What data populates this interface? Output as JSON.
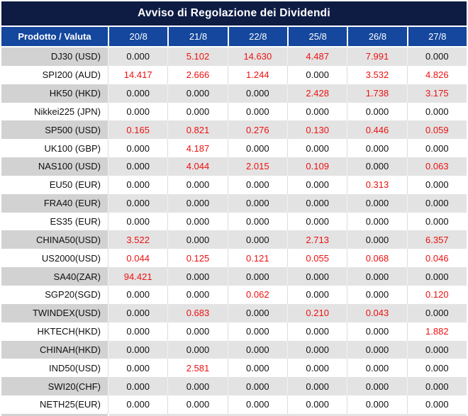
{
  "colors": {
    "title_bg": "#0e1c44",
    "header_bg": "#14479d",
    "header_text": "#ffffff",
    "value_red": "#ee1111",
    "value_black": "#101010",
    "row_stripe_gray": "#e3e3e3",
    "product_column_gray": "#d2d2d2"
  },
  "chart_data": {
    "type": "table",
    "title": "Avviso di Regolazione dei Dividendi",
    "columns": [
      "Prodotto / Valuta",
      "20/8",
      "21/8",
      "22/8",
      "25/8",
      "26/8",
      "27/8"
    ],
    "rows": [
      {
        "product": "DJ30 (USD)",
        "values": [
          "0.000",
          "5.102",
          "14.630",
          "4.487",
          "7.991",
          "0.000"
        ],
        "red": [
          false,
          true,
          true,
          true,
          true,
          false
        ]
      },
      {
        "product": "SPI200 (AUD)",
        "values": [
          "14.417",
          "2.666",
          "1.244",
          "0.000",
          "3.532",
          "4.826"
        ],
        "red": [
          true,
          true,
          true,
          false,
          true,
          true
        ]
      },
      {
        "product": "HK50 (HKD)",
        "values": [
          "0.000",
          "0.000",
          "0.000",
          "2.428",
          "1.738",
          "3.175"
        ],
        "red": [
          false,
          false,
          false,
          true,
          true,
          true
        ]
      },
      {
        "product": "Nikkei225 (JPN)",
        "values": [
          "0.000",
          "0.000",
          "0.000",
          "0.000",
          "0.000",
          "0.000"
        ],
        "red": [
          false,
          false,
          false,
          false,
          false,
          false
        ]
      },
      {
        "product": "SP500 (USD)",
        "values": [
          "0.165",
          "0.821",
          "0.276",
          "0.130",
          "0.446",
          "0.059"
        ],
        "red": [
          true,
          true,
          true,
          true,
          true,
          true
        ]
      },
      {
        "product": "UK100 (GBP)",
        "values": [
          "0.000",
          "4.187",
          "0.000",
          "0.000",
          "0.000",
          "0.000"
        ],
        "red": [
          false,
          true,
          false,
          false,
          false,
          false
        ]
      },
      {
        "product": "NAS100 (USD)",
        "values": [
          "0.000",
          "4.044",
          "2.015",
          "0.109",
          "0.000",
          "0.063"
        ],
        "red": [
          false,
          true,
          true,
          true,
          false,
          true
        ]
      },
      {
        "product": "EU50 (EUR)",
        "values": [
          "0.000",
          "0.000",
          "0.000",
          "0.000",
          "0.313",
          "0.000"
        ],
        "red": [
          false,
          false,
          false,
          false,
          true,
          false
        ]
      },
      {
        "product": "FRA40 (EUR)",
        "values": [
          "0.000",
          "0.000",
          "0.000",
          "0.000",
          "0.000",
          "0.000"
        ],
        "red": [
          false,
          false,
          false,
          false,
          false,
          false
        ]
      },
      {
        "product": "ES35 (EUR)",
        "values": [
          "0.000",
          "0.000",
          "0.000",
          "0.000",
          "0.000",
          "0.000"
        ],
        "red": [
          false,
          false,
          false,
          false,
          false,
          false
        ]
      },
      {
        "product": "CHINA50(USD)",
        "values": [
          "3.522",
          "0.000",
          "0.000",
          "2.713",
          "0.000",
          "6.357"
        ],
        "red": [
          true,
          false,
          false,
          true,
          false,
          true
        ]
      },
      {
        "product": "US2000(USD)",
        "values": [
          "0.044",
          "0.125",
          "0.121",
          "0.055",
          "0.068",
          "0.046"
        ],
        "red": [
          true,
          true,
          true,
          true,
          true,
          true
        ]
      },
      {
        "product": "SA40(ZAR)",
        "values": [
          "94.421",
          "0.000",
          "0.000",
          "0.000",
          "0.000",
          "0.000"
        ],
        "red": [
          true,
          false,
          false,
          false,
          false,
          false
        ]
      },
      {
        "product": "SGP20(SGD)",
        "values": [
          "0.000",
          "0.000",
          "0.062",
          "0.000",
          "0.000",
          "0.120"
        ],
        "red": [
          false,
          false,
          true,
          false,
          false,
          true
        ]
      },
      {
        "product": "TWINDEX(USD)",
        "values": [
          "0.000",
          "0.683",
          "0.000",
          "0.210",
          "0.043",
          "0.000"
        ],
        "red": [
          false,
          true,
          false,
          true,
          true,
          false
        ]
      },
      {
        "product": "HKTECH(HKD)",
        "values": [
          "0.000",
          "0.000",
          "0.000",
          "0.000",
          "0.000",
          "1.882"
        ],
        "red": [
          false,
          false,
          false,
          false,
          false,
          true
        ]
      },
      {
        "product": "CHINAH(HKD)",
        "values": [
          "0.000",
          "0.000",
          "0.000",
          "0.000",
          "0.000",
          "0.000"
        ],
        "red": [
          false,
          false,
          false,
          false,
          false,
          false
        ]
      },
      {
        "product": "IND50(USD)",
        "values": [
          "0.000",
          "2.581",
          "0.000",
          "0.000",
          "0.000",
          "0.000"
        ],
        "red": [
          false,
          true,
          false,
          false,
          false,
          false
        ]
      },
      {
        "product": "SWI20(CHF)",
        "values": [
          "0.000",
          "0.000",
          "0.000",
          "0.000",
          "0.000",
          "0.000"
        ],
        "red": [
          false,
          false,
          false,
          false,
          false,
          false
        ]
      },
      {
        "product": "NETH25(EUR)",
        "values": [
          "0.000",
          "0.000",
          "0.000",
          "0.000",
          "0.000",
          "0.000"
        ],
        "red": [
          false,
          false,
          false,
          false,
          false,
          false
        ]
      }
    ]
  }
}
